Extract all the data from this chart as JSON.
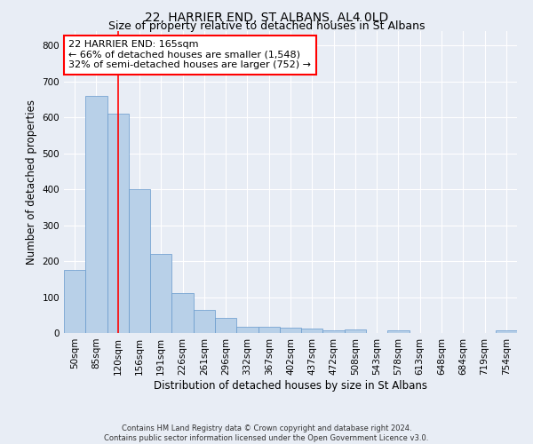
{
  "title": "22, HARRIER END, ST ALBANS, AL4 0LD",
  "subtitle": "Size of property relative to detached houses in St Albans",
  "xlabel": "Distribution of detached houses by size in St Albans",
  "ylabel": "Number of detached properties",
  "footer_line1": "Contains HM Land Registry data © Crown copyright and database right 2024.",
  "footer_line2": "Contains public sector information licensed under the Open Government Licence v3.0.",
  "categories": [
    "50sqm",
    "85sqm",
    "120sqm",
    "156sqm",
    "191sqm",
    "226sqm",
    "261sqm",
    "296sqm",
    "332sqm",
    "367sqm",
    "402sqm",
    "437sqm",
    "472sqm",
    "508sqm",
    "543sqm",
    "578sqm",
    "613sqm",
    "648sqm",
    "684sqm",
    "719sqm",
    "754sqm"
  ],
  "values": [
    175,
    660,
    610,
    400,
    220,
    110,
    65,
    43,
    18,
    17,
    14,
    12,
    7,
    9,
    0,
    8,
    0,
    0,
    0,
    0,
    7
  ],
  "bar_color": "#b8d0e8",
  "bar_edge_color": "#6699cc",
  "annotation_line1": "22 HARRIER END: 165sqm",
  "annotation_line2": "← 66% of detached houses are smaller (1,548)",
  "annotation_line3": "32% of semi-detached houses are larger (752) →",
  "annotation_box_color": "white",
  "annotation_box_edge_color": "red",
  "vline_x": 2.0,
  "vline_color": "red",
  "ylim": [
    0,
    840
  ],
  "background_color": "#e8edf5",
  "plot_background_color": "#e8edf5",
  "grid_color": "white",
  "title_fontsize": 10,
  "subtitle_fontsize": 9,
  "axis_label_fontsize": 8.5,
  "tick_fontsize": 7.5,
  "annotation_fontsize": 8,
  "footer_fontsize": 6
}
